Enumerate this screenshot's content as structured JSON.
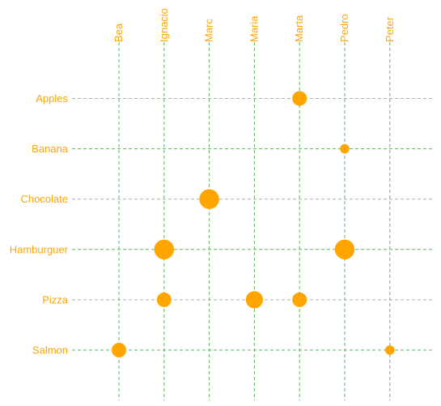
{
  "chart_data": {
    "type": "scatter",
    "title": "",
    "xlabel": "",
    "ylabel": "",
    "x_categories": [
      "Bea",
      "Ignacio",
      "Marc",
      "Maria",
      "Marta",
      "Pedro",
      "Peter"
    ],
    "y_categories": [
      "Apples",
      "Banana",
      "Chocolate",
      "Hamburguer",
      "Pizza",
      "Salmon"
    ],
    "points": [
      {
        "x": "Marta",
        "y": "Apples",
        "size": 2
      },
      {
        "x": "Pedro",
        "y": "Banana",
        "size": 1
      },
      {
        "x": "Marc",
        "y": "Chocolate",
        "size": 3
      },
      {
        "x": "Ignacio",
        "y": "Hamburguer",
        "size": 3
      },
      {
        "x": "Pedro",
        "y": "Hamburguer",
        "size": 3
      },
      {
        "x": "Ignacio",
        "y": "Pizza",
        "size": 2
      },
      {
        "x": "Maria",
        "y": "Pizza",
        "size": 2.5
      },
      {
        "x": "Marta",
        "y": "Pizza",
        "size": 2
      },
      {
        "x": "Bea",
        "y": "Salmon",
        "size": 2
      },
      {
        "x": "Peter",
        "y": "Salmon",
        "size": 1
      }
    ],
    "grid": true,
    "legend": "none",
    "colors": {
      "marker": "#FFA500",
      "label": "#FFA500",
      "grid_vertical": "#5fb35f",
      "grid_horizontal_odd": "#b0b0b0",
      "grid_horizontal_even": "#5fb35f"
    }
  }
}
